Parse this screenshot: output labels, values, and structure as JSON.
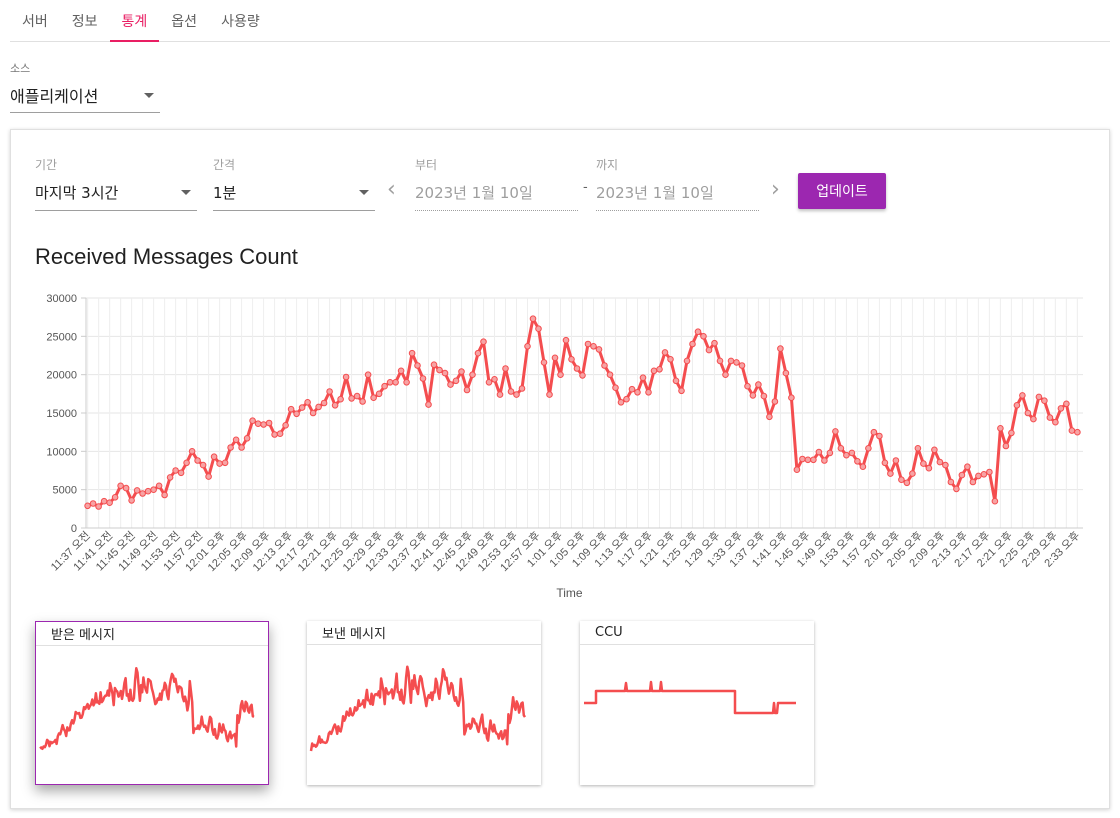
{
  "tabs": [
    "서버",
    "정보",
    "통계",
    "옵션",
    "사용량"
  ],
  "active_tab_index": 2,
  "source": {
    "label": "소스",
    "value": "애플리케이션"
  },
  "filters": {
    "period_label": "기간",
    "period_value": "마지막 3시간",
    "interval_label": "간격",
    "interval_value": "1분",
    "from_label": "부터",
    "from_value": "2023년 1월 10일",
    "dash": "-",
    "to_label": "까지",
    "to_value": "2023년 1월 10일",
    "update_label": "업데이트"
  },
  "chart_title": "Received Messages Count",
  "chart_data": {
    "type": "line",
    "xlabel": "Time",
    "ylabel": "",
    "ylim": [
      0,
      30000
    ],
    "yticks": [
      0,
      5000,
      10000,
      15000,
      20000,
      25000,
      30000
    ],
    "xtick_labels": [
      "11:37 오전",
      "11:41 오전",
      "11:45 오전",
      "11:49 오전",
      "11:53 오전",
      "11:57 오전",
      "12:01 오후",
      "12:05 오후",
      "12:09 오후",
      "12:13 오후",
      "12:17 오후",
      "12:21 오후",
      "12:25 오후",
      "12:29 오후",
      "12:33 오후",
      "12:37 오후",
      "12:41 오후",
      "12:45 오후",
      "12:49 오후",
      "12:53 오후",
      "12:57 오후",
      "1:01 오후",
      "1:05 오후",
      "1:09 오후",
      "1:13 오후",
      "1:17 오후",
      "1:21 오후",
      "1:25 오후",
      "1:29 오후",
      "1:33 오후",
      "1:37 오후",
      "1:41 오후",
      "1:45 오후",
      "1:49 오후",
      "1:53 오후",
      "1:57 오후",
      "2:01 오후",
      "2:05 오후",
      "2:09 오후",
      "2:13 오후",
      "2:17 오후",
      "2:21 오후",
      "2:25 오후",
      "2:29 오후",
      "2:33 오후"
    ],
    "color": "#f44d4f",
    "series": [
      {
        "values": [
          2900,
          3200,
          2800,
          3500,
          3300,
          4000,
          5500,
          5200,
          3600,
          4900,
          4500,
          4800,
          5000,
          5500,
          4300,
          6600,
          7500,
          7200,
          8500,
          10000,
          8800,
          8200,
          6700,
          9300,
          8400,
          8500,
          10500,
          11500,
          10500,
          11700,
          14000,
          13600,
          13500,
          13700,
          12200,
          12300,
          13400,
          15500,
          14900,
          15700,
          16400,
          15000,
          15800,
          16300,
          17800,
          16000,
          16800,
          19700,
          16900,
          17200,
          16500,
          20000,
          17000,
          17500,
          18500,
          19000,
          19000,
          20500,
          19000,
          22800,
          21200,
          19500,
          16100,
          21300,
          20600,
          20200,
          18700,
          19200,
          20400,
          18000,
          20000,
          22800,
          24300,
          19000,
          19400,
          17400,
          20800,
          17800,
          17400,
          18200,
          23700,
          27300,
          26000,
          21600,
          17400,
          22200,
          20000,
          24500,
          22000,
          20800,
          19900,
          24000,
          23700,
          23300,
          21200,
          20000,
          18300,
          16400,
          16800,
          18100,
          17700,
          19600,
          17700,
          20500,
          20700,
          22900,
          22000,
          19200,
          17900,
          21800,
          24000,
          25600,
          25000,
          23200,
          24100,
          21800,
          20000,
          21800,
          21600,
          21200,
          18500,
          17300,
          18700,
          17200,
          14500,
          16500,
          23400,
          20200,
          17000,
          7600,
          9000,
          8900,
          8900,
          9900,
          8800,
          9800,
          12600,
          10400,
          9500,
          9800,
          8700,
          8000,
          10400,
          12500,
          12000,
          8500,
          7100,
          8800,
          6300,
          5900,
          7100,
          10400,
          8400,
          7800,
          10200,
          8600,
          8200,
          6000,
          5100,
          6900,
          8000,
          6000,
          6800,
          7000,
          7300,
          3500,
          13000,
          10700,
          12400,
          16000,
          17300,
          15000,
          14200,
          17100,
          16600,
          14400,
          13800,
          15600,
          16200,
          12700,
          12500
        ]
      }
    ]
  },
  "thumbnails": [
    {
      "title": "받은 메시지"
    },
    {
      "title": "보낸 메시지"
    },
    {
      "title": "CCU"
    }
  ]
}
